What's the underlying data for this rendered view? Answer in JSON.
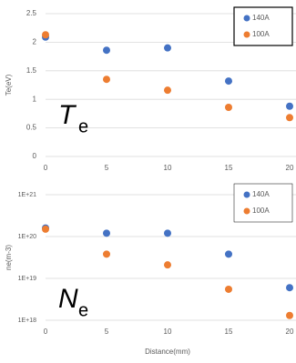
{
  "chart_data": [
    {
      "type": "scatter",
      "y_label": "Te(eV)",
      "annotation": "T",
      "annotation_sub": "e",
      "x": [
        0,
        5,
        10,
        15,
        20
      ],
      "series": [
        {
          "name": "140A",
          "color": "#4472c4",
          "values": [
            2.09,
            1.86,
            1.9,
            1.32,
            0.88
          ]
        },
        {
          "name": "100A",
          "color": "#ed7d31",
          "values": [
            2.13,
            1.35,
            1.16,
            0.86,
            0.68
          ]
        }
      ],
      "xlim": [
        0,
        20
      ],
      "xticks": [
        0,
        5,
        10,
        15,
        20
      ],
      "ylim": [
        0,
        2.5
      ],
      "yticks": [
        0,
        0.5,
        1,
        1.5,
        2,
        2.5
      ],
      "grid": true,
      "legend": "upper right"
    },
    {
      "type": "scatter",
      "y_label": "ne(m-3)",
      "x_label": "Distance(mm)",
      "annotation": "N",
      "annotation_sub": "e",
      "x": [
        0,
        5,
        10,
        15,
        20
      ],
      "series": [
        {
          "name": "140A",
          "color": "#4472c4",
          "values": [
            1.6e+20,
            1.2e+20,
            1.2e+20,
            3.8e+19,
            6e+18
          ]
        },
        {
          "name": "100A",
          "color": "#ed7d31",
          "values": [
            1.5e+20,
            3.8e+19,
            2.1e+19,
            5.5e+18,
            1.3e+18
          ]
        }
      ],
      "xlim": [
        0,
        20
      ],
      "xticks": [
        0,
        5,
        10,
        15,
        20
      ],
      "ylim": [
        1e+18,
        1e+21
      ],
      "log_y": true,
      "yticks": [
        {
          "value": 1e+18,
          "label": "1E+18"
        },
        {
          "value": 1e+19,
          "label": "1E+19"
        },
        {
          "value": 1e+20,
          "label": "1E+20"
        },
        {
          "value": 1e+21,
          "label": "1E+21"
        }
      ],
      "grid": true,
      "legend": "upper right"
    }
  ]
}
